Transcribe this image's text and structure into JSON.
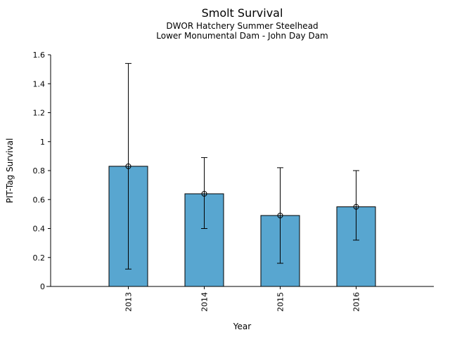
{
  "chart_data": {
    "type": "bar",
    "title": "Smolt Survival",
    "subtitle1": "DWOR Hatchery Summer Steelhead",
    "subtitle2": "Lower Monumental Dam - John Day Dam",
    "xlabel": "Year",
    "ylabel": "PIT-Tag Survival",
    "categories": [
      "2013",
      "2014",
      "2015",
      "2016"
    ],
    "values": [
      0.83,
      0.64,
      0.49,
      0.55
    ],
    "error_low": [
      0.12,
      0.4,
      0.16,
      0.32
    ],
    "error_high": [
      1.54,
      0.89,
      0.82,
      0.8
    ],
    "ylim": [
      0,
      1.6
    ],
    "ytick_values": [
      0,
      0.2,
      0.4,
      0.6,
      0.8,
      1,
      1.2,
      1.4,
      1.6
    ],
    "ytick_labels": [
      "0",
      "0.2",
      "0.4",
      "0.6",
      "0.8",
      "1",
      "1.2",
      "1.4",
      "1.6"
    ],
    "grid": false,
    "legend": "none",
    "marker": "open-circle",
    "colors": {
      "bar_fill": "#58a6d0",
      "bar_edge": "#000000",
      "error_bar": "#000000",
      "axis": "#000000",
      "text": "#000000",
      "background": "#ffffff"
    }
  }
}
